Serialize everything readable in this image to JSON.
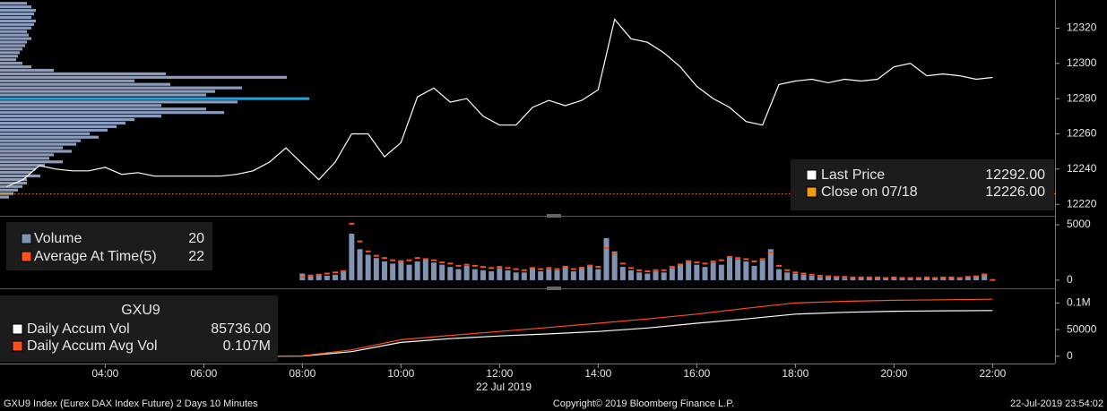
{
  "chart_data": [
    {
      "type": "line",
      "ylim": [
        12215,
        12336
      ],
      "yticks": [
        12220,
        12240,
        12260,
        12280,
        12300,
        12320
      ],
      "x": [
        "02:00",
        "02:20",
        "02:40",
        "03:00",
        "03:20",
        "03:40",
        "04:00",
        "04:20",
        "04:40",
        "05:00",
        "05:20",
        "05:40",
        "06:00",
        "06:20",
        "06:40",
        "07:00",
        "07:20",
        "07:40",
        "08:00",
        "08:20",
        "08:40",
        "09:00",
        "09:20",
        "09:40",
        "10:00",
        "10:20",
        "10:40",
        "11:00",
        "11:20",
        "11:40",
        "12:00",
        "12:20",
        "12:40",
        "13:00",
        "13:20",
        "13:40",
        "14:00",
        "14:20",
        "14:40",
        "15:00",
        "15:20",
        "15:40",
        "16:00",
        "16:20",
        "16:40",
        "17:00",
        "17:20",
        "17:40",
        "18:00",
        "18:20",
        "18:40",
        "19:00",
        "19:20",
        "19:40",
        "20:00",
        "20:20",
        "20:40",
        "21:00",
        "21:20",
        "21:40",
        "22:00"
      ],
      "series": [
        {
          "name": "Last Price",
          "color": "#ffffff",
          "legend_value": "12292.00",
          "values": [
            12230,
            12234,
            12242,
            12240,
            12239,
            12239,
            12241,
            12237,
            12238,
            12236,
            12236,
            12236,
            12236,
            12236,
            12237,
            12239,
            12244,
            12252,
            12243,
            12234,
            12244,
            12260,
            12260,
            12247,
            12255,
            12281,
            12286,
            12278,
            12280,
            12270,
            12265,
            12265,
            12275,
            12279,
            12276,
            12279,
            12285,
            12325,
            12314,
            12312,
            12306,
            12298,
            12287,
            12280,
            12275,
            12267,
            12265,
            12288,
            12290,
            12291,
            12289,
            12291,
            12290,
            12291,
            12298,
            12300,
            12293,
            12294,
            12293,
            12291,
            12292
          ]
        }
      ],
      "reference": {
        "name": "Close on 07/18",
        "value": 12226,
        "color": "#f39c12",
        "legend_value": "12226.00"
      },
      "profile": {
        "color": "#8a9bbd",
        "highlight": 12280,
        "highlight_color": "#1ea7e1",
        "levels": [
          12334,
          12332,
          12330,
          12328,
          12326,
          12324,
          12322,
          12320,
          12318,
          12316,
          12314,
          12312,
          12310,
          12308,
          12306,
          12304,
          12302,
          12300,
          12298,
          12296,
          12294,
          12292,
          12290,
          12288,
          12286,
          12284,
          12282,
          12280,
          12278,
          12276,
          12274,
          12272,
          12270,
          12268,
          12266,
          12264,
          12262,
          12260,
          12258,
          12256,
          12254,
          12252,
          12250,
          12248,
          12246,
          12244,
          12242,
          12240,
          12238,
          12236,
          12234,
          12232,
          12230,
          12228,
          12226,
          12224
        ],
        "values": [
          30,
          35,
          40,
          38,
          35,
          40,
          38,
          35,
          30,
          32,
          35,
          30,
          28,
          25,
          22,
          20,
          18,
          25,
          35,
          60,
          185,
          320,
          150,
          190,
          270,
          240,
          230,
          345,
          265,
          180,
          230,
          250,
          180,
          150,
          140,
          130,
          120,
          100,
          110,
          90,
          85,
          70,
          80,
          60,
          55,
          70,
          50,
          40,
          35,
          45,
          30,
          30,
          25,
          20,
          15,
          10
        ]
      }
    },
    {
      "type": "bar",
      "ylim": [
        -570,
        5570
      ],
      "yticks": [
        0,
        5000
      ],
      "x": [
        "08:00",
        "08:10",
        "08:20",
        "08:30",
        "08:40",
        "08:50",
        "09:00",
        "09:10",
        "09:20",
        "09:30",
        "09:40",
        "09:50",
        "10:00",
        "10:10",
        "10:20",
        "10:30",
        "10:40",
        "10:50",
        "11:00",
        "11:10",
        "11:20",
        "11:30",
        "11:40",
        "11:50",
        "12:00",
        "12:10",
        "12:20",
        "12:30",
        "12:40",
        "12:50",
        "13:00",
        "13:10",
        "13:20",
        "13:30",
        "13:40",
        "13:50",
        "14:00",
        "14:10",
        "14:20",
        "14:30",
        "14:40",
        "14:50",
        "15:00",
        "15:10",
        "15:20",
        "15:30",
        "15:40",
        "15:50",
        "16:00",
        "16:10",
        "16:20",
        "16:30",
        "16:40",
        "16:50",
        "17:00",
        "17:10",
        "17:20",
        "17:30",
        "17:40",
        "17:50",
        "18:00",
        "18:10",
        "18:20",
        "18:30",
        "18:40",
        "18:50",
        "19:00",
        "19:10",
        "19:20",
        "19:30",
        "19:40",
        "19:50",
        "20:00",
        "20:10",
        "20:20",
        "20:30",
        "20:40",
        "20:50",
        "21:00",
        "21:10",
        "21:20",
        "21:30",
        "21:40",
        "21:50",
        "22:00"
      ],
      "series": [
        {
          "name": "Volume",
          "color": "#7f93b3",
          "values": [
            600,
            500,
            500,
            400,
            500,
            900,
            4200,
            2800,
            2300,
            2000,
            1700,
            1500,
            1800,
            1400,
            1700,
            1900,
            1600,
            1400,
            1200,
            1000,
            1300,
            1000,
            900,
            800,
            1100,
            900,
            700,
            700,
            1100,
            800,
            1000,
            900,
            1300,
            800,
            1200,
            1400,
            1000,
            3800,
            2600,
            1200,
            900,
            700,
            600,
            800,
            700,
            1100,
            1500,
            1800,
            1400,
            1200,
            1600,
            1400,
            2100,
            1900,
            1700,
            1300,
            1800,
            2800,
            1000,
            700,
            600,
            500,
            400,
            300,
            300,
            300,
            200,
            200,
            200,
            200,
            200,
            150,
            200,
            150,
            150,
            150,
            200,
            150,
            200,
            200,
            150,
            250,
            300,
            600,
            20
          ]
        },
        {
          "name": "Average At Time(5)",
          "color": "#ff4f1a",
          "values": [
            300,
            400,
            500,
            600,
            700,
            800,
            5100,
            3500,
            2600,
            2200,
            2000,
            1800,
            1700,
            1800,
            2000,
            1900,
            1800,
            1600,
            1500,
            1300,
            1400,
            1300,
            1200,
            1100,
            1200,
            1100,
            1000,
            900,
            1100,
            1000,
            1100,
            1000,
            1200,
            1000,
            1100,
            1300,
            1200,
            2900,
            2400,
            1500,
            1100,
            900,
            800,
            900,
            900,
            1200,
            1400,
            1700,
            1600,
            1500,
            1700,
            1800,
            2100,
            2000,
            1900,
            1700,
            1900,
            2500,
            1300,
            900,
            700,
            600,
            500,
            400,
            350,
            300,
            300,
            250,
            250,
            250,
            250,
            200,
            250,
            200,
            200,
            200,
            250,
            200,
            250,
            250,
            200,
            300,
            350,
            500,
            22
          ]
        }
      ]
    },
    {
      "type": "line",
      "title": "GXU9",
      "ylim": [
        -12000,
        122400
      ],
      "yticks": [
        0,
        50000,
        {
          "value": 100000,
          "label": "0.1M"
        }
      ],
      "x": [
        "02:00",
        "03:00",
        "04:00",
        "05:00",
        "06:00",
        "07:00",
        "08:00",
        "09:00",
        "10:00",
        "11:00",
        "12:00",
        "13:00",
        "14:00",
        "15:00",
        "16:00",
        "17:00",
        "18:00",
        "19:00",
        "20:00",
        "21:00",
        "22:00"
      ],
      "series": [
        {
          "name": "Daily Accum Vol",
          "color": "#ffffff",
          "legend_value": "85736.00",
          "values": [
            0,
            0,
            0,
            0,
            0,
            0,
            500,
            8600,
            26000,
            33000,
            38000,
            42000,
            46500,
            53000,
            62000,
            70000,
            79000,
            82500,
            84500,
            85200,
            85736
          ]
        },
        {
          "name": "Daily Accum Avg Vol",
          "color": "#ff4f1a",
          "legend_value": "0.107M",
          "values": [
            0,
            0,
            0,
            0,
            0,
            0,
            1000,
            12000,
            31000,
            39000,
            46500,
            54000,
            62000,
            70000,
            79000,
            90000,
            100000,
            103000,
            105000,
            106000,
            107000
          ]
        }
      ]
    }
  ],
  "time_axis": {
    "xlim": [
      "01:52",
      "23:16"
    ],
    "xticks": [
      "04:00",
      "06:00",
      "08:00",
      "10:00",
      "12:00",
      "14:00",
      "16:00",
      "18:00",
      "20:00",
      "22:00"
    ],
    "date_label": "22 Jul 2019"
  },
  "footer": {
    "left": "GXU9 Index (Eurex DAX Index Future) 2 Days 10 Minutes",
    "center": "Copyright© 2019 Bloomberg Finance L.P.",
    "right": "22-Jul-2019 23:54:02"
  }
}
